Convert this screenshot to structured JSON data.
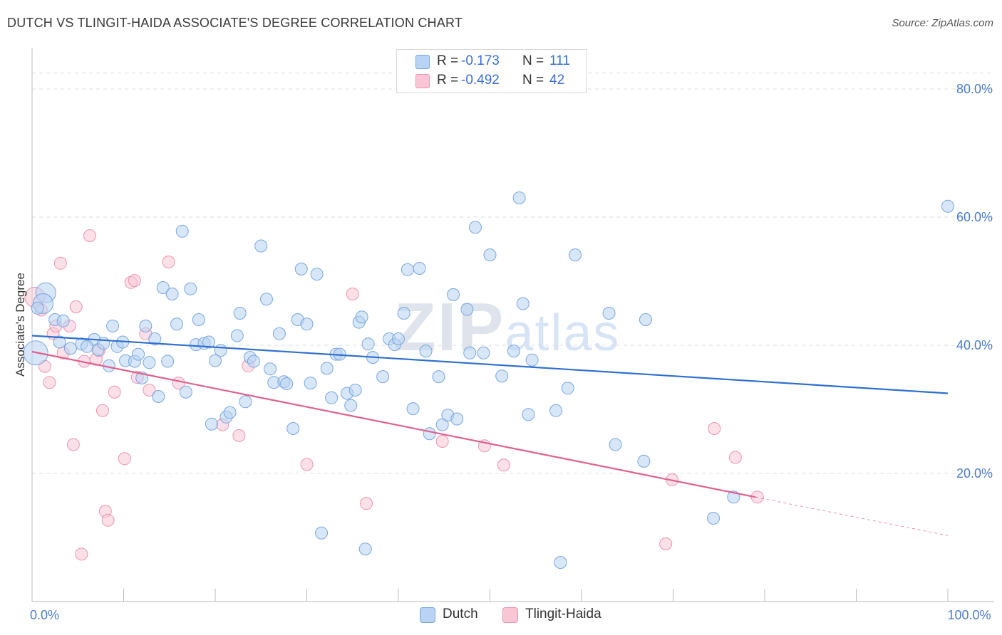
{
  "header": {
    "title": "DUTCH VS TLINGIT-HAIDA ASSOCIATE'S DEGREE CORRELATION CHART",
    "source": "Source: ZipAtlas.com"
  },
  "watermark": {
    "zip": "ZIP",
    "atlas": "atlas"
  },
  "colors": {
    "dutch_fill": "#b8d3f3",
    "dutch_stroke": "#7aa6dc",
    "dutch_line": "#2f6fcf",
    "tlingit_fill": "#f9c6d6",
    "tlingit_stroke": "#e995b1",
    "tlingit_line": "#e0608e",
    "grid": "#dddddd",
    "tick_text": "#4a7cc9"
  },
  "legend": {
    "rows": [
      {
        "r_label": "R =",
        "r_value": "-0.173",
        "n_label": "N =",
        "n_value": "111"
      },
      {
        "r_label": "R =",
        "r_value": "-0.492",
        "n_label": "N =",
        "n_value": "42"
      }
    ]
  },
  "bottom_legend": {
    "dutch": "Dutch",
    "tlingit": "Tlingit-Haida"
  },
  "chart_data": {
    "type": "scatter",
    "title": "DUTCH VS TLINGIT-HAIDA ASSOCIATE'S DEGREE CORRELATION CHART",
    "xlabel": "",
    "ylabel": "Associate's Degree",
    "xlim": [
      0,
      100
    ],
    "ylim": [
      0,
      85
    ],
    "x_tick_labels": [
      {
        "value": 0,
        "label": "0.0%"
      },
      {
        "value": 100,
        "label": "100.0%"
      }
    ],
    "y_tick_labels": [
      {
        "value": 20,
        "label": "20.0%"
      },
      {
        "value": 40,
        "label": "40.0%"
      },
      {
        "value": 60,
        "label": "60.0%"
      },
      {
        "value": 80,
        "label": "80.0%"
      }
    ],
    "x_minor_ticks": [
      10,
      20,
      30,
      40,
      50,
      60,
      70,
      80,
      90,
      100
    ],
    "grid": true,
    "series": [
      {
        "name": "Dutch",
        "r": -0.173,
        "n": 111,
        "trend": {
          "x0": 0,
          "y0": 41.5,
          "x1": 100,
          "y1": 32.5
        },
        "points": [
          [
            0.4,
            38.8,
            3
          ],
          [
            1.5,
            48.2,
            2
          ],
          [
            1.2,
            46.5,
            2
          ],
          [
            0.6,
            45.8,
            1
          ],
          [
            2.5,
            44.0,
            1
          ],
          [
            3.4,
            43.8,
            1
          ],
          [
            3.0,
            40.5,
            1
          ],
          [
            4.2,
            39.5,
            1
          ],
          [
            5.4,
            40.2,
            1
          ],
          [
            6.8,
            40.9,
            1
          ],
          [
            6.0,
            39.8,
            1
          ],
          [
            7.2,
            39.3,
            1
          ],
          [
            7.8,
            40.3,
            1
          ],
          [
            8.4,
            36.8,
            1
          ],
          [
            8.8,
            43.0,
            1
          ],
          [
            9.3,
            39.8,
            1
          ],
          [
            9.9,
            40.5,
            1
          ],
          [
            10.2,
            37.6,
            1
          ],
          [
            11.2,
            37.5,
            1
          ],
          [
            11.6,
            38.6,
            1
          ],
          [
            12.0,
            34.9,
            1
          ],
          [
            12.4,
            43.0,
            1
          ],
          [
            12.8,
            37.3,
            1
          ],
          [
            13.4,
            41.0,
            1
          ],
          [
            13.8,
            32.0,
            1
          ],
          [
            14.3,
            49.0,
            1
          ],
          [
            14.8,
            37.5,
            1
          ],
          [
            15.3,
            48.0,
            1
          ],
          [
            15.8,
            43.3,
            1
          ],
          [
            16.4,
            57.8,
            1
          ],
          [
            16.8,
            32.7,
            1
          ],
          [
            17.3,
            48.8,
            1
          ],
          [
            17.9,
            40.1,
            1
          ],
          [
            18.2,
            44.0,
            1
          ],
          [
            18.8,
            40.3,
            1
          ],
          [
            19.3,
            40.5,
            1
          ],
          [
            19.6,
            27.7,
            1
          ],
          [
            20.0,
            37.6,
            1
          ],
          [
            20.6,
            39.2,
            1
          ],
          [
            21.2,
            28.8,
            1
          ],
          [
            21.6,
            29.5,
            1
          ],
          [
            22.4,
            41.5,
            1
          ],
          [
            22.7,
            45.0,
            1
          ],
          [
            23.3,
            31.2,
            1
          ],
          [
            23.8,
            38.1,
            1
          ],
          [
            24.2,
            37.5,
            1
          ],
          [
            25.0,
            55.5,
            1
          ],
          [
            25.6,
            47.2,
            1
          ],
          [
            26.0,
            36.3,
            1
          ],
          [
            26.4,
            34.2,
            1
          ],
          [
            27.0,
            41.8,
            1
          ],
          [
            27.5,
            34.3,
            1
          ],
          [
            27.8,
            34.0,
            1
          ],
          [
            28.5,
            27.0,
            1
          ],
          [
            29.0,
            44.0,
            1
          ],
          [
            29.4,
            51.9,
            1
          ],
          [
            30.0,
            43.3,
            1
          ],
          [
            30.4,
            34.1,
            1
          ],
          [
            31.1,
            51.1,
            1
          ],
          [
            31.6,
            10.7,
            1
          ],
          [
            32.2,
            36.4,
            1
          ],
          [
            32.7,
            31.8,
            1
          ],
          [
            33.2,
            38.6,
            1
          ],
          [
            33.6,
            38.6,
            1
          ],
          [
            34.4,
            32.5,
            1
          ],
          [
            34.8,
            30.6,
            1
          ],
          [
            35.3,
            33.0,
            1
          ],
          [
            35.7,
            43.6,
            1
          ],
          [
            36.0,
            44.4,
            1
          ],
          [
            36.4,
            8.2,
            1
          ],
          [
            36.7,
            40.2,
            1
          ],
          [
            37.2,
            38.1,
            1
          ],
          [
            38.3,
            35.1,
            1
          ],
          [
            39.0,
            41.0,
            1
          ],
          [
            39.6,
            40.1,
            1
          ],
          [
            40.0,
            41.0,
            1
          ],
          [
            40.6,
            45.0,
            1
          ],
          [
            41.0,
            51.8,
            1
          ],
          [
            41.6,
            30.1,
            1
          ],
          [
            42.3,
            52.0,
            1
          ],
          [
            43.0,
            39.1,
            1
          ],
          [
            43.4,
            26.2,
            1
          ],
          [
            44.4,
            35.1,
            1
          ],
          [
            44.8,
            27.6,
            1
          ],
          [
            45.4,
            29.1,
            1
          ],
          [
            46.0,
            47.9,
            1
          ],
          [
            46.4,
            28.5,
            1
          ],
          [
            47.5,
            45.6,
            1
          ],
          [
            47.8,
            38.8,
            1
          ],
          [
            48.4,
            58.4,
            1
          ],
          [
            49.3,
            38.8,
            1
          ],
          [
            50.0,
            54.1,
            1
          ],
          [
            51.3,
            35.2,
            1
          ],
          [
            52.6,
            39.1,
            1
          ],
          [
            53.2,
            63.0,
            1
          ],
          [
            53.6,
            46.5,
            1
          ],
          [
            54.2,
            29.2,
            1
          ],
          [
            54.6,
            37.7,
            1
          ],
          [
            57.2,
            29.8,
            1
          ],
          [
            57.7,
            6.1,
            1
          ],
          [
            58.5,
            33.3,
            1
          ],
          [
            59.3,
            54.1,
            1
          ],
          [
            63.0,
            45.0,
            1
          ],
          [
            63.7,
            24.5,
            1
          ],
          [
            66.8,
            21.9,
            1
          ],
          [
            67.0,
            44.0,
            1
          ],
          [
            74.4,
            13.0,
            1
          ],
          [
            76.6,
            16.3,
            1
          ],
          [
            100.0,
            61.7,
            1
          ]
        ]
      },
      {
        "name": "Tlingit-Haida",
        "r": -0.492,
        "n": 42,
        "trend": {
          "x0": 0,
          "y0": 39.0,
          "x1": 79,
          "y1": 16.3,
          "dash_x1": 100,
          "dash_y1": 10.3
        },
        "points": [
          [
            0.3,
            47.5,
            2
          ],
          [
            1.0,
            45.5,
            1
          ],
          [
            1.4,
            36.7,
            1
          ],
          [
            1.9,
            34.2,
            1
          ],
          [
            2.3,
            41.8,
            1
          ],
          [
            2.6,
            43.0,
            1
          ],
          [
            3.1,
            52.8,
            1
          ],
          [
            3.4,
            38.8,
            1
          ],
          [
            4.1,
            43.0,
            1
          ],
          [
            4.5,
            24.5,
            1
          ],
          [
            4.8,
            46.0,
            1
          ],
          [
            5.4,
            7.4,
            1
          ],
          [
            5.7,
            37.5,
            1
          ],
          [
            6.3,
            57.1,
            1
          ],
          [
            7.0,
            37.8,
            1
          ],
          [
            7.3,
            39.2,
            1
          ],
          [
            7.7,
            29.8,
            1
          ],
          [
            8.0,
            14.1,
            1
          ],
          [
            8.3,
            12.7,
            1
          ],
          [
            9.0,
            32.7,
            1
          ],
          [
            10.1,
            22.3,
            1
          ],
          [
            10.8,
            49.8,
            1
          ],
          [
            11.2,
            50.1,
            1
          ],
          [
            11.5,
            35.0,
            1
          ],
          [
            12.4,
            41.8,
            1
          ],
          [
            12.8,
            33.0,
            1
          ],
          [
            14.9,
            53.0,
            1
          ],
          [
            16.0,
            34.1,
            1
          ],
          [
            20.8,
            27.6,
            1
          ],
          [
            22.6,
            25.9,
            1
          ],
          [
            23.6,
            36.8,
            1
          ],
          [
            30.0,
            21.4,
            1
          ],
          [
            35.0,
            48.0,
            1
          ],
          [
            36.5,
            15.3,
            1
          ],
          [
            44.8,
            25.0,
            1
          ],
          [
            49.4,
            24.3,
            1
          ],
          [
            51.5,
            21.3,
            1
          ],
          [
            69.2,
            9.0,
            1
          ],
          [
            69.9,
            19.0,
            1
          ],
          [
            74.5,
            27.0,
            1
          ],
          [
            76.8,
            22.5,
            1
          ],
          [
            79.2,
            16.3,
            1
          ]
        ]
      }
    ]
  }
}
